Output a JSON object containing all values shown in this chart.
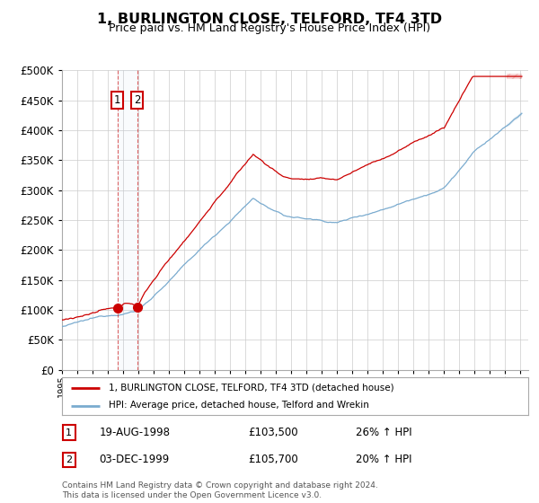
{
  "title": "1, BURLINGTON CLOSE, TELFORD, TF4 3TD",
  "subtitle": "Price paid vs. HM Land Registry's House Price Index (HPI)",
  "legend_line1": "1, BURLINGTON CLOSE, TELFORD, TF4 3TD (detached house)",
  "legend_line2": "HPI: Average price, detached house, Telford and Wrekin",
  "sale1_date": "19-AUG-1998",
  "sale1_price": "£103,500",
  "sale1_hpi": "26% ↑ HPI",
  "sale2_date": "03-DEC-1999",
  "sale2_price": "£105,700",
  "sale2_hpi": "20% ↑ HPI",
  "footer": "Contains HM Land Registry data © Crown copyright and database right 2024.\nThis data is licensed under the Open Government Licence v3.0.",
  "ylim": [
    0,
    500000
  ],
  "yticks": [
    0,
    50000,
    100000,
    150000,
    200000,
    250000,
    300000,
    350000,
    400000,
    450000,
    500000
  ],
  "price_color": "#cc0000",
  "hpi_color": "#7aabcf",
  "sale1_x": 1998.63,
  "sale2_x": 1999.92,
  "background_color": "#ffffff",
  "grid_color": "#cccccc",
  "xlim_start": 1995.0,
  "xlim_end": 2025.5
}
